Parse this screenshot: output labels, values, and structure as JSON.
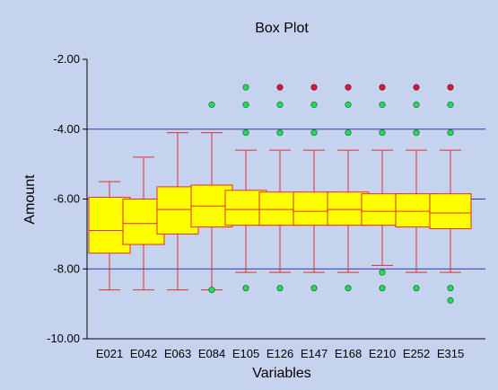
{
  "chart_data": {
    "type": "box",
    "title": "Box Plot",
    "xlabel": "Variables",
    "ylabel": "Amount",
    "ylim": [
      -10,
      -2
    ],
    "yticks": [
      "-2.00",
      "-4.00",
      "-6.00",
      "-8.00",
      "-10.00"
    ],
    "ytick_values": [
      -2,
      -4,
      -6,
      -8,
      -10
    ],
    "grid": "horizontal major lines",
    "categories": [
      "E021",
      "E042",
      "E063",
      "E084",
      "E105",
      "E126",
      "E147",
      "E168",
      "E210",
      "E252",
      "E315"
    ],
    "boxes": [
      {
        "whisker_low": -8.6,
        "q1": -7.55,
        "median": -6.9,
        "q3": -5.95,
        "whisker_high": -5.5,
        "outliers_mild": [],
        "outliers_extreme": []
      },
      {
        "whisker_low": -8.6,
        "q1": -7.3,
        "median": -6.7,
        "q3": -6.0,
        "whisker_high": -4.8,
        "outliers_mild": [],
        "outliers_extreme": []
      },
      {
        "whisker_low": -8.6,
        "q1": -7.0,
        "median": -6.3,
        "q3": -5.65,
        "whisker_high": -4.1,
        "outliers_mild": [],
        "outliers_extreme": []
      },
      {
        "whisker_low": -8.6,
        "q1": -6.8,
        "median": -6.2,
        "q3": -5.6,
        "whisker_high": -4.1,
        "outliers_mild": [
          -3.3,
          -8.6
        ],
        "outliers_extreme": []
      },
      {
        "whisker_low": -8.1,
        "q1": -6.75,
        "median": -6.3,
        "q3": -5.75,
        "whisker_high": -4.6,
        "outliers_mild": [
          -2.8,
          -3.3,
          -4.1,
          -8.55
        ],
        "outliers_extreme": []
      },
      {
        "whisker_low": -8.1,
        "q1": -6.75,
        "median": -6.3,
        "q3": -5.8,
        "whisker_high": -4.6,
        "outliers_mild": [
          -3.3,
          -4.1,
          -8.55
        ],
        "outliers_extreme": [
          -2.8
        ]
      },
      {
        "whisker_low": -8.1,
        "q1": -6.75,
        "median": -6.35,
        "q3": -5.8,
        "whisker_high": -4.6,
        "outliers_mild": [
          -3.3,
          -4.1,
          -8.55
        ],
        "outliers_extreme": [
          -2.8
        ]
      },
      {
        "whisker_low": -8.1,
        "q1": -6.75,
        "median": -6.3,
        "q3": -5.8,
        "whisker_high": -4.6,
        "outliers_mild": [
          -3.3,
          -4.1,
          -8.55
        ],
        "outliers_extreme": [
          -2.8
        ]
      },
      {
        "whisker_low": -7.9,
        "q1": -6.75,
        "median": -6.35,
        "q3": -5.85,
        "whisker_high": -4.6,
        "outliers_mild": [
          -3.3,
          -4.1,
          -8.1,
          -8.55
        ],
        "outliers_extreme": [
          -2.8
        ]
      },
      {
        "whisker_low": -8.1,
        "q1": -6.8,
        "median": -6.35,
        "q3": -5.85,
        "whisker_high": -4.6,
        "outliers_mild": [
          -3.3,
          -4.1,
          -8.55
        ],
        "outliers_extreme": [
          -2.8
        ]
      },
      {
        "whisker_low": -8.1,
        "q1": -6.85,
        "median": -6.4,
        "q3": -5.85,
        "whisker_high": -4.6,
        "outliers_mild": [
          -3.3,
          -4.1,
          -8.55,
          -8.9
        ],
        "outliers_extreme": [
          -2.8
        ]
      }
    ],
    "colors": {
      "background": "#c6d3ef",
      "plot_area": "#c6d3ef",
      "box_fill": "#ffff00",
      "box_edge": "#e0312b",
      "whisker": "#e0312b",
      "grid": "#2e3a9c",
      "outlier_mild": "#22dd55",
      "outlier_extreme": "#e0143c",
      "axis": "#000000"
    }
  }
}
